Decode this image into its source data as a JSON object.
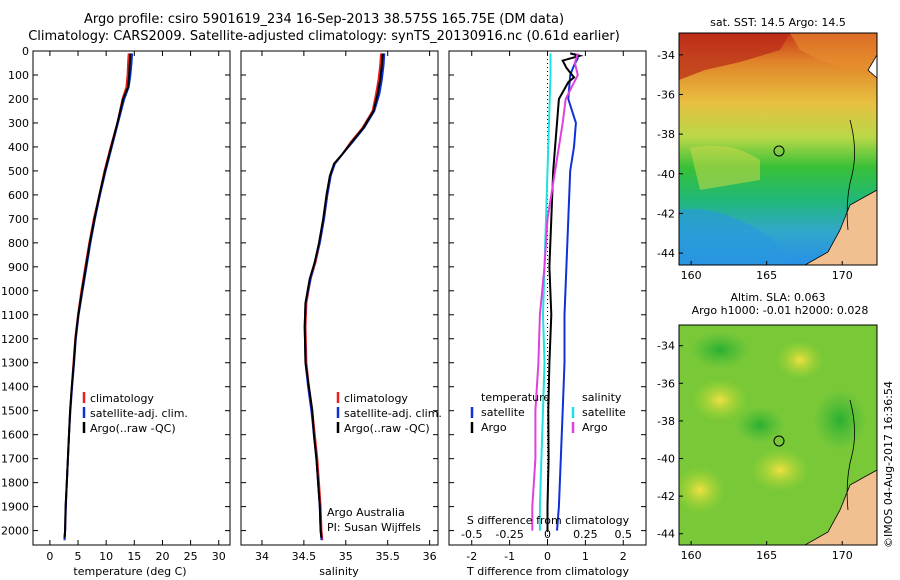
{
  "header": {
    "title_line1": "Argo profile: csiro 5901619_234 16-Sep-2013 38.575S 165.75E (DM data)",
    "title_line2": "Climatology: CARS2009. Satellite-adjusted climatology: synTS_20130916.nc (0.61d earlier)"
  },
  "colors": {
    "climatology": "#e8201f",
    "satellite": "#1030d8",
    "argo": "#000000",
    "sal_satellite": "#20e0e0",
    "sal_argo": "#e040e0"
  },
  "chart_data": [
    {
      "id": "temperature",
      "type": "line",
      "xlabel": "temperature (deg C)",
      "ylabel": "",
      "xlim": [
        -3,
        32
      ],
      "xticks": [
        "0",
        "5",
        "10",
        "15",
        "20",
        "25",
        "30"
      ],
      "ylim": [
        2060,
        0
      ],
      "yticks": [
        "0",
        "100",
        "200",
        "300",
        "400",
        "500",
        "600",
        "700",
        "800",
        "900",
        "1000",
        "1100",
        "1200",
        "1300",
        "1400",
        "1500",
        "1600",
        "1700",
        "1800",
        "1900",
        "2000"
      ],
      "legend": [
        "climatology",
        "satellite-adj. clim.",
        "Argo(..raw -QC)"
      ],
      "series": [
        {
          "name": "climatology",
          "color_key": "climatology",
          "points": [
            [
              14.0,
              10
            ],
            [
              13.9,
              50
            ],
            [
              13.8,
              100
            ],
            [
              13.6,
              150
            ],
            [
              12.9,
              200
            ],
            [
              12.0,
              300
            ],
            [
              10.8,
              400
            ],
            [
              9.7,
              500
            ],
            [
              8.8,
              600
            ],
            [
              7.8,
              700
            ],
            [
              7.0,
              800
            ],
            [
              6.3,
              900
            ],
            [
              5.6,
              1000
            ],
            [
              5.0,
              1100
            ],
            [
              4.5,
              1200
            ],
            [
              4.2,
              1300
            ],
            [
              3.9,
              1400
            ],
            [
              3.6,
              1500
            ],
            [
              3.4,
              1600
            ],
            [
              3.2,
              1700
            ],
            [
              3.0,
              1800
            ],
            [
              2.8,
              1900
            ],
            [
              2.7,
              2000
            ],
            [
              2.6,
              2040
            ]
          ]
        },
        {
          "name": "satellite-adj. clim.",
          "color_key": "satellite",
          "points": [
            [
              14.6,
              10
            ],
            [
              14.5,
              50
            ],
            [
              14.3,
              100
            ],
            [
              14.0,
              150
            ],
            [
              13.2,
              200
            ],
            [
              12.1,
              300
            ],
            [
              11.0,
              400
            ],
            [
              9.9,
              500
            ],
            [
              8.9,
              600
            ],
            [
              8.0,
              700
            ],
            [
              7.2,
              800
            ],
            [
              6.5,
              900
            ],
            [
              5.8,
              1000
            ],
            [
              5.1,
              1100
            ],
            [
              4.6,
              1200
            ],
            [
              4.3,
              1300
            ],
            [
              3.95,
              1400
            ],
            [
              3.65,
              1500
            ],
            [
              3.4,
              1600
            ],
            [
              3.2,
              1700
            ],
            [
              3.0,
              1800
            ],
            [
              2.85,
              1900
            ],
            [
              2.7,
              2000
            ],
            [
              2.6,
              2040
            ]
          ]
        },
        {
          "name": "Argo(..raw -QC)",
          "color_key": "argo",
          "points": [
            [
              14.3,
              10
            ],
            [
              14.2,
              50
            ],
            [
              14.1,
              100
            ],
            [
              13.9,
              150
            ],
            [
              13.0,
              200
            ],
            [
              12.0,
              300
            ],
            [
              10.9,
              400
            ],
            [
              9.8,
              500
            ],
            [
              8.8,
              600
            ],
            [
              7.9,
              700
            ],
            [
              7.1,
              800
            ],
            [
              6.4,
              900
            ],
            [
              5.7,
              1000
            ],
            [
              5.05,
              1100
            ],
            [
              4.55,
              1200
            ],
            [
              4.25,
              1300
            ],
            [
              3.9,
              1400
            ],
            [
              3.6,
              1500
            ],
            [
              3.4,
              1600
            ],
            [
              3.2,
              1700
            ],
            [
              3.0,
              1800
            ],
            [
              2.8,
              1900
            ],
            [
              2.7,
              2000
            ],
            [
              2.6,
              2030
            ]
          ]
        }
      ]
    },
    {
      "id": "salinity",
      "type": "line",
      "xlabel": "salinity",
      "ylabel": "",
      "xlim": [
        33.75,
        36.1
      ],
      "xticks": [
        "34",
        "34.5",
        "35",
        "35.5",
        "36"
      ],
      "ylim": [
        2060,
        0
      ],
      "legend": [
        "climatology",
        "satellite-adj. clim.",
        "Argo(..raw -QC)"
      ],
      "annotation": [
        "Argo Australia",
        "PI: Susan Wijffels"
      ],
      "series": [
        {
          "name": "climatology",
          "color_key": "climatology",
          "points": [
            [
              35.42,
              10
            ],
            [
              35.41,
              60
            ],
            [
              35.39,
              120
            ],
            [
              35.36,
              180
            ],
            [
              35.32,
              250
            ],
            [
              35.2,
              320
            ],
            [
              35.06,
              380
            ],
            [
              34.96,
              430
            ],
            [
              34.86,
              470
            ],
            [
              34.82,
              520
            ],
            [
              34.78,
              600
            ],
            [
              34.74,
              700
            ],
            [
              34.69,
              800
            ],
            [
              34.64,
              880
            ],
            [
              34.58,
              950
            ],
            [
              34.53,
              1050
            ],
            [
              34.52,
              1150
            ],
            [
              34.53,
              1300
            ],
            [
              34.56,
              1400
            ],
            [
              34.6,
              1500
            ],
            [
              34.63,
              1600
            ],
            [
              34.66,
              1700
            ],
            [
              34.68,
              1800
            ],
            [
              34.7,
              1900
            ],
            [
              34.71,
              2000
            ],
            [
              34.72,
              2040
            ]
          ]
        },
        {
          "name": "satellite-adj. clim.",
          "color_key": "satellite",
          "points": [
            [
              35.46,
              10
            ],
            [
              35.45,
              60
            ],
            [
              35.43,
              120
            ],
            [
              35.4,
              180
            ],
            [
              35.34,
              250
            ],
            [
              35.22,
              320
            ],
            [
              35.08,
              380
            ],
            [
              34.96,
              430
            ],
            [
              34.87,
              470
            ],
            [
              34.82,
              520
            ],
            [
              34.78,
              600
            ],
            [
              34.74,
              700
            ],
            [
              34.69,
              800
            ],
            [
              34.63,
              880
            ],
            [
              34.58,
              950
            ],
            [
              34.52,
              1050
            ],
            [
              34.51,
              1150
            ],
            [
              34.52,
              1300
            ],
            [
              34.55,
              1400
            ],
            [
              34.59,
              1500
            ],
            [
              34.62,
              1600
            ],
            [
              34.65,
              1700
            ],
            [
              34.67,
              1800
            ],
            [
              34.69,
              1900
            ],
            [
              34.7,
              2000
            ],
            [
              34.71,
              2040
            ]
          ]
        },
        {
          "name": "Argo(..raw -QC)",
          "color_key": "argo",
          "points": [
            [
              35.44,
              10
            ],
            [
              35.43,
              60
            ],
            [
              35.41,
              120
            ],
            [
              35.38,
              180
            ],
            [
              35.33,
              250
            ],
            [
              35.21,
              320
            ],
            [
              35.07,
              380
            ],
            [
              34.96,
              430
            ],
            [
              34.86,
              470
            ],
            [
              34.81,
              520
            ],
            [
              34.77,
              600
            ],
            [
              34.73,
              700
            ],
            [
              34.68,
              800
            ],
            [
              34.63,
              880
            ],
            [
              34.57,
              950
            ],
            [
              34.52,
              1050
            ],
            [
              34.51,
              1150
            ],
            [
              34.52,
              1300
            ],
            [
              34.56,
              1400
            ],
            [
              34.6,
              1500
            ],
            [
              34.62,
              1600
            ],
            [
              34.65,
              1700
            ],
            [
              34.67,
              1800
            ],
            [
              34.69,
              1900
            ],
            [
              34.7,
              2000
            ],
            [
              34.71,
              2030
            ]
          ]
        }
      ]
    },
    {
      "id": "differences",
      "type": "line",
      "xlabel": "T difference from climatology",
      "top_axis_label": "S difference from climatology",
      "xlim": [
        -2.6,
        2.6
      ],
      "xticks": [
        "-2",
        "-1",
        "0",
        "1",
        "2"
      ],
      "top_ticks": [
        "-0.5",
        "-0.25",
        "0",
        "0.25",
        "0.5"
      ],
      "ylim": [
        2060,
        0
      ],
      "legend_temperature": {
        "heading": "temperature",
        "items": [
          "satellite",
          "Argo"
        ]
      },
      "legend_salinity": {
        "heading": "salinity",
        "items": [
          "satellite",
          "Argo"
        ]
      },
      "series": [
        {
          "name": "satellite",
          "group": "temperature",
          "color_key": "satellite",
          "points": [
            [
              0.7,
              10
            ],
            [
              0.8,
              30
            ],
            [
              0.7,
              60
            ],
            [
              0.6,
              100
            ],
            [
              0.55,
              200
            ],
            [
              0.75,
              300
            ],
            [
              0.7,
              400
            ],
            [
              0.6,
              500
            ],
            [
              0.55,
              700
            ],
            [
              0.5,
              900
            ],
            [
              0.45,
              1100
            ],
            [
              0.45,
              1300
            ],
            [
              0.4,
              1500
            ],
            [
              0.35,
              1700
            ],
            [
              0.3,
              1900
            ],
            [
              0.25,
              2000
            ]
          ]
        },
        {
          "name": "Argo",
          "group": "temperature",
          "color_key": "argo",
          "points": [
            [
              0.6,
              10
            ],
            [
              0.85,
              20
            ],
            [
              0.4,
              40
            ],
            [
              0.5,
              70
            ],
            [
              0.7,
              110
            ],
            [
              0.55,
              130
            ],
            [
              0.3,
              200
            ],
            [
              0.25,
              300
            ],
            [
              0.2,
              400
            ],
            [
              0.15,
              500
            ],
            [
              0.1,
              700
            ],
            [
              0.05,
              900
            ],
            [
              0.1,
              1100
            ],
            [
              0.05,
              1300
            ],
            [
              0.02,
              1500
            ],
            [
              0.03,
              1700
            ],
            [
              0.0,
              1900
            ],
            [
              0.0,
              2000
            ]
          ]
        },
        {
          "name": "satellite",
          "group": "salinity",
          "color_key": "sal_satellite",
          "points": [
            [
              0.02,
              10
            ],
            [
              0.02,
              100
            ],
            [
              0.01,
              300
            ],
            [
              0.0,
              500
            ],
            [
              -0.01,
              700
            ],
            [
              -0.02,
              900
            ],
            [
              -0.03,
              1100
            ],
            [
              -0.02,
              1300
            ],
            [
              -0.03,
              1500
            ],
            [
              -0.04,
              1700
            ],
            [
              -0.05,
              1900
            ],
            [
              -0.05,
              2000
            ]
          ]
        },
        {
          "name": "Argo",
          "group": "salinity",
          "color_key": "sal_argo",
          "points": [
            [
              0.2,
              10
            ],
            [
              0.18,
              50
            ],
            [
              0.2,
              100
            ],
            [
              0.12,
              200
            ],
            [
              0.1,
              300
            ],
            [
              0.05,
              500
            ],
            [
              0.0,
              700
            ],
            [
              -0.02,
              900
            ],
            [
              -0.05,
              1100
            ],
            [
              -0.06,
              1300
            ],
            [
              -0.08,
              1500
            ],
            [
              -0.08,
              1700
            ],
            [
              -0.1,
              1900
            ],
            [
              -0.1,
              2000
            ]
          ]
        }
      ]
    },
    {
      "id": "sst_map",
      "type": "heatmap",
      "title": "sat. SST: 14.5  Argo: 14.5",
      "xticks": [
        "160",
        "165",
        "170"
      ],
      "yticks": [
        "-34",
        "-36",
        "-38",
        "-40",
        "-42",
        "-44"
      ],
      "xlim": [
        159.2,
        172.3
      ],
      "ylim": [
        -44.6,
        -32.9
      ],
      "profile_position": {
        "lon": 165.75,
        "lat": -38.575
      }
    },
    {
      "id": "sla_map",
      "type": "heatmap",
      "title_line1": "Altim. SLA: 0.063",
      "title_line2": "Argo h1000: -0.01 h2000: 0.028",
      "xticks": [
        "160",
        "165",
        "170"
      ],
      "yticks": [
        "-34",
        "-36",
        "-38",
        "-40",
        "-42",
        "-44"
      ],
      "xlim": [
        159.2,
        172.3
      ],
      "ylim": [
        -44.6,
        -32.9
      ],
      "profile_position": {
        "lon": 165.75,
        "lat": -38.575
      }
    }
  ],
  "footer": {
    "imos_stamp": "©IMOS 04-Aug-2017 16:36:54"
  }
}
